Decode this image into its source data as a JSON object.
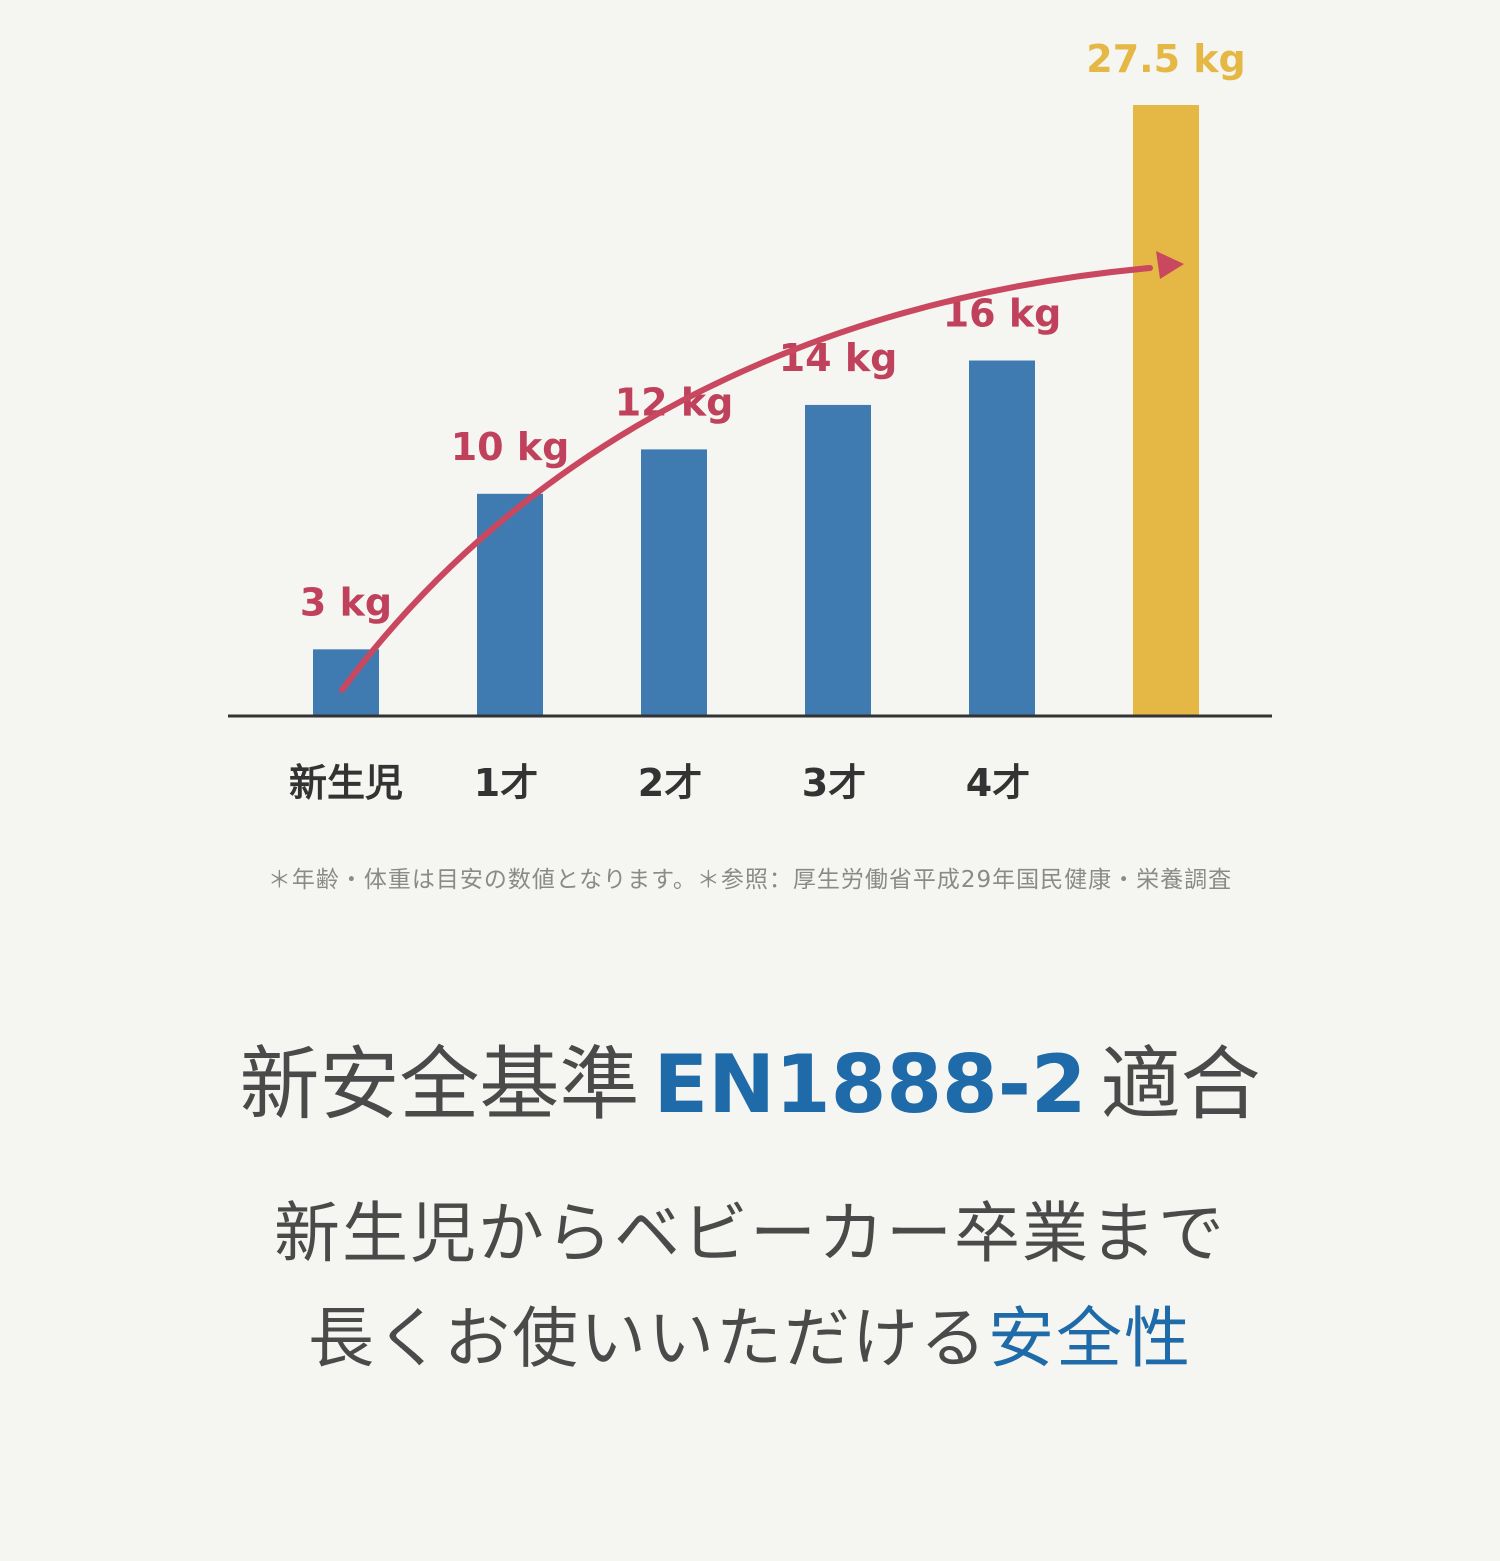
{
  "chart_data": {
    "type": "bar",
    "categories": [
      "新生児",
      "1才",
      "2才",
      "3才",
      "4才",
      ""
    ],
    "values": [
      3,
      10,
      12,
      14,
      16,
      27.5
    ],
    "value_labels": [
      "3 kg",
      "10 kg",
      "12 kg",
      "14 kg",
      "16 kg",
      "27.5 kg"
    ],
    "title": "",
    "xlabel": "",
    "ylabel": "",
    "ylim": [
      0,
      27.5
    ],
    "grid": false,
    "legend": "none",
    "trend_arrow": true,
    "colors": {
      "bar": "#3f7bb1",
      "highlight_bar": "#e5b845",
      "label": "#c0415b",
      "highlight_label": "#e5b845",
      "arrow": "#c9485f",
      "axis": "#333333"
    }
  },
  "footnote": "＊年齢・体重は目安の数値となります。＊参照：厚生労働省平成29年国民健康・栄養調査",
  "headline": {
    "prefix": "新安全基準",
    "standard": "EN1888-2",
    "suffix": "適合"
  },
  "subheadline": {
    "line1": "新生児からベビーカー卒業まで",
    "line2_prefix": "長くお使いいただける",
    "line2_accent": "安全性"
  }
}
